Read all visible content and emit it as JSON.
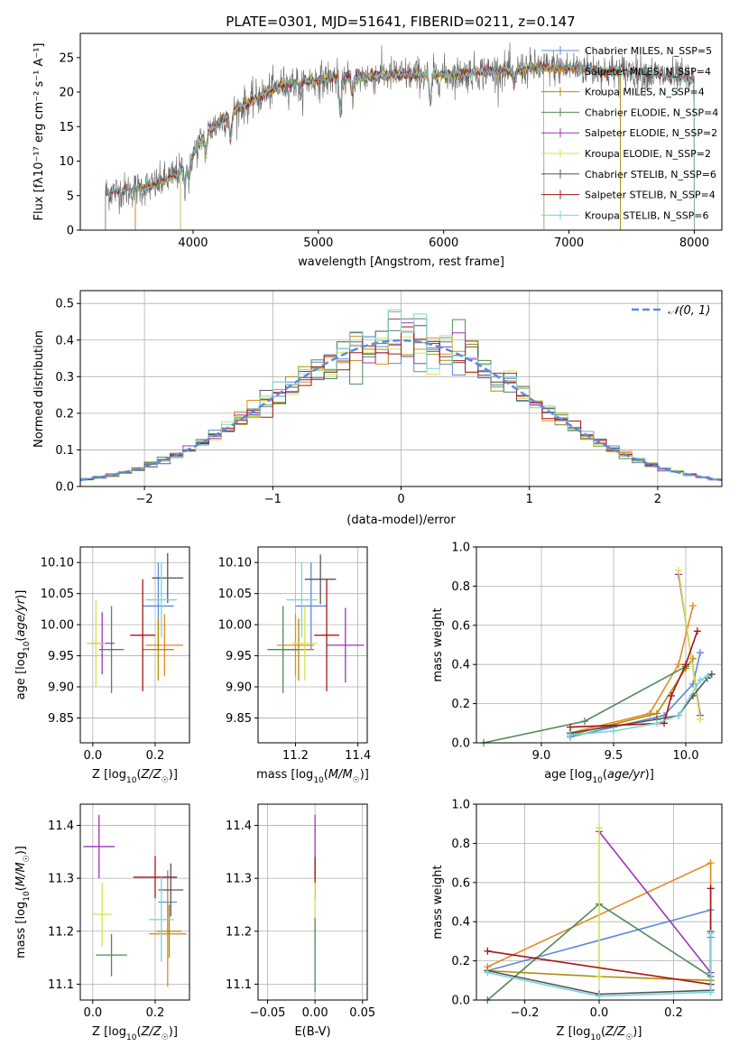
{
  "page_title": "PLATE=0301, MJD=51641, FIBERID=0211, z=0.147",
  "colors": {
    "Chabrier MILES": "#5b8bd9",
    "Salpeter MILES": "#e8891f",
    "Kroupa MILES": "#b08d00",
    "Chabrier ELODIE": "#4f8a5a",
    "Salpeter ELODIE": "#9b35b8",
    "Kroupa ELODIE": "#d4e34a",
    "Chabrier STELIB": "#555555",
    "Salpeter STELIB": "#a81414",
    "Kroupa STELIB": "#7ad3d9"
  },
  "chart_data": [
    {
      "type": "line",
      "title": "PLATE=0301, MJD=51641, FIBERID=0211, z=0.147",
      "xlabel": "wavelength [Angstrom, rest frame]",
      "ylabel": "Flux [fλ10⁻¹⁷ erg cm⁻² s⁻¹ A⁻¹]",
      "xlim": [
        3100,
        8220
      ],
      "ylim": [
        0,
        28.5
      ],
      "xticks": [
        4000,
        5000,
        6000,
        7000,
        8000
      ],
      "yticks": [
        0,
        5,
        10,
        15,
        20,
        25
      ],
      "legend": "top-right",
      "legend_entries": [
        "Chabrier MILES, N_SSP=5",
        "Salpeter MILES, N_SSP=4",
        "Kroupa MILES, N_SSP=4",
        "Chabrier ELODIE, N_SSP=4",
        "Salpeter ELODIE, N_SSP=2",
        "Kroupa ELODIE, N_SSP=2",
        "Chabrier STELIB, N_SSP=6",
        "Salpeter STELIB, N_SSP=4",
        "Kroupa STELIB, N_SSP=6"
      ],
      "continuum": {
        "x": [
          3300,
          3500,
          3700,
          3900,
          4000,
          4100,
          4300,
          4500,
          4700,
          4900,
          5100,
          5300,
          5500,
          5700,
          5900,
          6100,
          6300,
          6500,
          6700,
          6900,
          7100,
          7300,
          7500,
          7700,
          7900,
          8000
        ],
        "y": [
          5.5,
          5.8,
          6.5,
          8.5,
          11,
          14,
          17,
          19,
          21,
          21.5,
          22,
          22,
          22.5,
          22.5,
          22.5,
          22.5,
          23,
          23,
          23.5,
          23.5,
          23.5,
          23,
          23,
          22.5,
          22,
          21.5
        ]
      }
    },
    {
      "type": "histogram",
      "xlabel": "(data-model)/error",
      "ylabel": "Normed distribution",
      "xlim": [
        -2.5,
        2.5
      ],
      "ylim": [
        0,
        0.535
      ],
      "xticks": [
        -2,
        -1,
        0,
        1,
        2
      ],
      "yticks": [
        0.0,
        0.1,
        0.2,
        0.3,
        0.4,
        0.5
      ],
      "reference_curve": "𝒩(0, 1)",
      "legend": "top-right",
      "bin_width": 0.1
    },
    {
      "type": "scatter",
      "xlabel": "Z [log₁₀(Z/Z☉)]",
      "ylabel": "age  [log₁₀(age/yr)]",
      "xlim": [
        -0.04,
        0.31
      ],
      "ylim": [
        9.81,
        10.125
      ],
      "xticks": [
        0.0,
        0.2
      ],
      "yticks": [
        9.85,
        9.9,
        9.95,
        10.0,
        10.05,
        10.1
      ],
      "points": [
        {
          "series": "Chabrier MILES",
          "x": 0.21,
          "y": 10.03,
          "xerr": 0.05,
          "yerr": 0.07
        },
        {
          "series": "Salpeter MILES",
          "x": 0.23,
          "y": 9.967,
          "xerr": 0.06,
          "yerr": 0.05
        },
        {
          "series": "Kroupa MILES",
          "x": 0.21,
          "y": 9.96,
          "xerr": 0.05,
          "yerr": 0.05
        },
        {
          "series": "Chabrier ELODIE",
          "x": 0.06,
          "y": 9.96,
          "xerr": 0.04,
          "yerr": 0.07
        },
        {
          "series": "Salpeter ELODIE",
          "x": 0.03,
          "y": 9.97,
          "xerr": 0.04,
          "yerr": 0.05
        },
        {
          "series": "Kroupa ELODIE",
          "x": 0.01,
          "y": 9.97,
          "xerr": 0.03,
          "yerr": 0.07
        },
        {
          "series": "Chabrier STELIB",
          "x": 0.24,
          "y": 10.075,
          "xerr": 0.05,
          "yerr": 0.04
        },
        {
          "series": "Salpeter STELIB",
          "x": 0.16,
          "y": 9.983,
          "xerr": 0.04,
          "yerr": 0.09
        },
        {
          "series": "Kroupa STELIB",
          "x": 0.22,
          "y": 10.04,
          "xerr": 0.05,
          "yerr": 0.06
        }
      ]
    },
    {
      "type": "scatter",
      "xlabel": "mass [log₁₀(M/M☉)]",
      "xlim": [
        11.08,
        11.43
      ],
      "ylim": [
        9.81,
        10.125
      ],
      "xticks": [
        11.2,
        11.4
      ],
      "yticks": [
        9.85,
        9.9,
        9.95,
        10.0,
        10.05,
        10.1
      ],
      "points": [
        {
          "series": "Chabrier MILES",
          "x": 11.25,
          "y": 10.03,
          "xerr": 0.05,
          "yerr": 0.07
        },
        {
          "series": "Salpeter MILES",
          "x": 11.2,
          "y": 9.967,
          "xerr": 0.06,
          "yerr": 0.05
        },
        {
          "series": "Kroupa MILES",
          "x": 11.21,
          "y": 9.96,
          "xerr": 0.05,
          "yerr": 0.05
        },
        {
          "series": "Chabrier ELODIE",
          "x": 11.16,
          "y": 9.96,
          "xerr": 0.05,
          "yerr": 0.07
        },
        {
          "series": "Salpeter ELODIE",
          "x": 11.36,
          "y": 9.967,
          "xerr": 0.06,
          "yerr": 0.06
        },
        {
          "series": "Kroupa ELODIE",
          "x": 11.23,
          "y": 9.97,
          "xerr": 0.04,
          "yerr": 0.06
        },
        {
          "series": "Chabrier STELIB",
          "x": 11.28,
          "y": 10.073,
          "xerr": 0.05,
          "yerr": 0.04
        },
        {
          "series": "Salpeter STELIB",
          "x": 11.3,
          "y": 9.983,
          "xerr": 0.04,
          "yerr": 0.09
        },
        {
          "series": "Kroupa STELIB",
          "x": 11.22,
          "y": 10.04,
          "xerr": 0.05,
          "yerr": 0.06
        }
      ]
    },
    {
      "type": "line",
      "xlabel": "age  [log₁₀(age/yr)]",
      "ylabel": "mass weight",
      "xlim": [
        8.55,
        10.25
      ],
      "ylim": [
        0,
        1.0
      ],
      "xticks": [
        9.0,
        9.5,
        10.0
      ],
      "yticks": [
        0.0,
        0.2,
        0.4,
        0.6,
        0.8,
        1.0
      ],
      "series": [
        {
          "name": "Chabrier MILES",
          "x": [
            9.2,
            9.5,
            9.85,
            10.05,
            10.1
          ],
          "y": [
            0.03,
            0.08,
            0.14,
            0.3,
            0.46
          ]
        },
        {
          "name": "Salpeter MILES",
          "x": [
            9.2,
            9.75,
            9.95,
            10.05
          ],
          "y": [
            0.05,
            0.15,
            0.4,
            0.7
          ]
        },
        {
          "name": "Kroupa MILES",
          "x": [
            9.2,
            9.8,
            10.0,
            10.05
          ],
          "y": [
            0.04,
            0.15,
            0.38,
            0.43
          ]
        },
        {
          "name": "Chabrier ELODIE",
          "x": [
            8.6,
            9.3,
            10.0
          ],
          "y": [
            0.0,
            0.11,
            0.39
          ]
        },
        {
          "name": "Salpeter ELODIE",
          "x": [
            9.95,
            10.1
          ],
          "y": [
            0.86,
            0.14
          ]
        },
        {
          "name": "Kroupa ELODIE",
          "x": [
            9.95,
            10.1
          ],
          "y": [
            0.88,
            0.12
          ]
        },
        {
          "name": "Chabrier STELIB",
          "x": [
            9.2,
            9.8,
            9.95,
            10.05,
            10.15,
            10.18
          ],
          "y": [
            0.05,
            0.12,
            0.14,
            0.24,
            0.33,
            0.35
          ]
        },
        {
          "name": "Salpeter STELIB",
          "x": [
            9.2,
            9.85,
            9.9,
            10.0,
            10.08
          ],
          "y": [
            0.08,
            0.1,
            0.24,
            0.4,
            0.57
          ]
        },
        {
          "name": "Kroupa STELIB",
          "x": [
            9.2,
            9.5,
            9.8,
            9.95,
            10.1,
            10.15
          ],
          "y": [
            0.04,
            0.06,
            0.1,
            0.14,
            0.32,
            0.34
          ]
        }
      ]
    },
    {
      "type": "scatter",
      "xlabel": "Z [log₁₀(Z/Z☉)]",
      "ylabel": "mass [log₁₀(M/M☉)]",
      "xlim": [
        -0.04,
        0.31
      ],
      "ylim": [
        11.07,
        11.44
      ],
      "xticks": [
        0.0,
        0.2
      ],
      "yticks": [
        11.1,
        11.2,
        11.3,
        11.4
      ],
      "points": [
        {
          "series": "Chabrier MILES",
          "x": 0.24,
          "y": 11.255,
          "xerr": 0.03,
          "yerr": 0.06
        },
        {
          "series": "Salpeter MILES",
          "x": 0.24,
          "y": 11.195,
          "xerr": 0.06,
          "yerr": 0.1
        },
        {
          "series": "Kroupa MILES",
          "x": 0.245,
          "y": 11.2,
          "xerr": 0.04,
          "yerr": 0.05
        },
        {
          "series": "Chabrier ELODIE",
          "x": 0.06,
          "y": 11.155,
          "xerr": 0.05,
          "yerr": 0.04
        },
        {
          "series": "Salpeter ELODIE",
          "x": 0.02,
          "y": 11.36,
          "xerr": 0.05,
          "yerr": 0.06
        },
        {
          "series": "Kroupa ELODIE",
          "x": 0.03,
          "y": 11.232,
          "xerr": 0.03,
          "yerr": 0.06
        },
        {
          "series": "Chabrier STELIB",
          "x": 0.25,
          "y": 11.278,
          "xerr": 0.04,
          "yerr": 0.05
        },
        {
          "series": "Salpeter STELIB",
          "x": 0.2,
          "y": 11.302,
          "xerr": 0.07,
          "yerr": 0.04
        },
        {
          "series": "Kroupa STELIB",
          "x": 0.22,
          "y": 11.222,
          "xerr": 0.04,
          "yerr": 0.08
        }
      ]
    },
    {
      "type": "scatter",
      "xlabel": "E(B-V)",
      "xlim": [
        -0.06,
        0.055
      ],
      "ylim": [
        11.07,
        11.44
      ],
      "xticks": [
        -0.05,
        0.0,
        0.05
      ],
      "yticks": [
        11.1,
        11.2,
        11.3,
        11.4
      ],
      "points": [
        {
          "series": "Salpeter ELODIE",
          "x": 0.0,
          "y": 11.36,
          "xerr": 0.0,
          "yerr": 0.06
        },
        {
          "series": "Salpeter STELIB",
          "x": 0.0,
          "y": 11.3,
          "xerr": 0.0,
          "yerr": 0.04
        },
        {
          "series": "Kroupa ELODIE",
          "x": 0.0,
          "y": 11.232,
          "xerr": 0.0,
          "yerr": 0.06
        },
        {
          "series": "Chabrier ELODIE",
          "x": 0.0,
          "y": 11.155,
          "xerr": 0.0,
          "yerr": 0.07
        }
      ]
    },
    {
      "type": "line",
      "xlabel": "Z [log₁₀(Z/Z☉)]",
      "ylabel": "mass weight",
      "xlim": [
        -0.33,
        0.33
      ],
      "ylim": [
        0,
        1.0
      ],
      "xticks": [
        -0.2,
        0.0,
        0.2
      ],
      "yticks": [
        0.0,
        0.2,
        0.4,
        0.6,
        0.8,
        1.0
      ],
      "series": [
        {
          "name": "Chabrier MILES",
          "x": [
            -0.3,
            0.3,
            0.3,
            0.3
          ],
          "y": [
            0.15,
            0.46,
            0.32,
            0.05
          ]
        },
        {
          "name": "Salpeter MILES",
          "x": [
            -0.3,
            0.3,
            0.3
          ],
          "y": [
            0.17,
            0.7,
            0.1
          ]
        },
        {
          "name": "Kroupa MILES",
          "x": [
            -0.3,
            0.0,
            0.3
          ],
          "y": [
            0.15,
            0.12,
            0.1
          ]
        },
        {
          "name": "Chabrier ELODIE",
          "x": [
            -0.3,
            0.0,
            0.3
          ],
          "y": [
            0.0,
            0.49,
            0.12
          ]
        },
        {
          "name": "Salpeter ELODIE",
          "x": [
            0.0,
            0.3
          ],
          "y": [
            0.86,
            0.14
          ]
        },
        {
          "name": "Kroupa ELODIE",
          "x": [
            0.0,
            0.0
          ],
          "y": [
            0.88,
            0.12
          ]
        },
        {
          "name": "Chabrier STELIB",
          "x": [
            -0.3,
            0.0,
            0.3,
            0.3
          ],
          "y": [
            0.15,
            0.03,
            0.05,
            0.35
          ]
        },
        {
          "name": "Salpeter STELIB",
          "x": [
            -0.3,
            0.3,
            0.3
          ],
          "y": [
            0.25,
            0.08,
            0.57
          ]
        },
        {
          "name": "Kroupa STELIB",
          "x": [
            -0.3,
            0.0,
            0.3,
            0.3
          ],
          "y": [
            0.14,
            0.02,
            0.04,
            0.34
          ]
        }
      ]
    }
  ]
}
